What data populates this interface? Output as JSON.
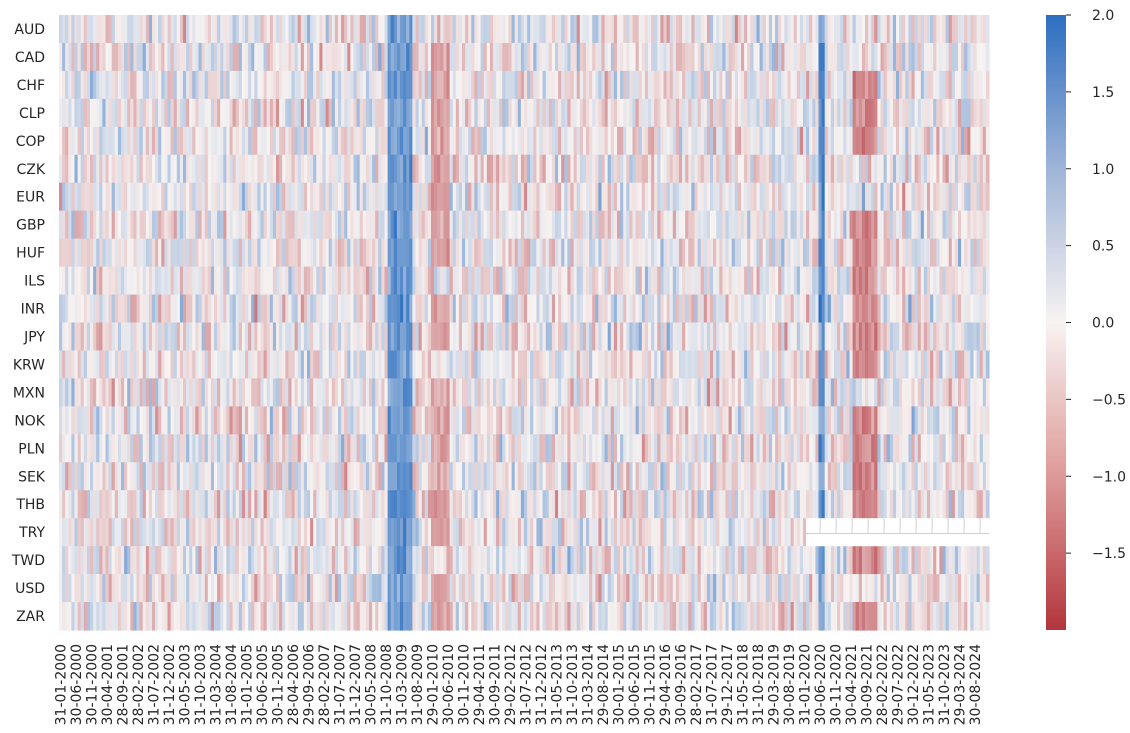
{
  "chart_data": {
    "type": "heatmap",
    "title": "",
    "xlabel": "",
    "ylabel": "",
    "rows": [
      "AUD",
      "CAD",
      "CHF",
      "CLP",
      "COP",
      "CZK",
      "EUR",
      "GBP",
      "HUF",
      "ILS",
      "INR",
      "JPY",
      "KRW",
      "MXN",
      "NOK",
      "PLN",
      "SEK",
      "THB",
      "TRY",
      "TWD",
      "USD",
      "ZAR"
    ],
    "x_tick_labels": [
      "31-01-2000",
      "30-06-2000",
      "30-11-2000",
      "30-04-2001",
      "28-09-2001",
      "28-02-2002",
      "31-07-2002",
      "31-12-2002",
      "30-05-2003",
      "31-10-2003",
      "31-03-2004",
      "31-08-2004",
      "31-01-2005",
      "30-06-2005",
      "30-11-2005",
      "28-04-2006",
      "29-09-2006",
      "28-02-2007",
      "31-07-2007",
      "31-12-2007",
      "30-05-2008",
      "31-10-2008",
      "31-03-2009",
      "31-08-2009",
      "29-01-2010",
      "30-06-2010",
      "30-11-2010",
      "29-04-2011",
      "30-09-2011",
      "29-02-2012",
      "31-07-2012",
      "31-12-2012",
      "31-05-2013",
      "31-10-2013",
      "31-03-2014",
      "29-08-2014",
      "30-01-2015",
      "30-06-2015",
      "30-11-2015",
      "29-04-2016",
      "30-09-2016",
      "28-02-2017",
      "31-07-2017",
      "29-12-2017",
      "31-05-2018",
      "31-10-2018",
      "29-03-2019",
      "30-08-2019",
      "31-01-2020",
      "30-06-2020",
      "30-11-2020",
      "30-04-2021",
      "30-09-2021",
      "28-02-2022",
      "29-07-2022",
      "30-12-2022",
      "31-05-2023",
      "31-10-2023",
      "29-03-2024",
      "30-08-2024"
    ],
    "n_months": 300,
    "colorbar": {
      "vmin": -2.0,
      "vmax": 2.0,
      "ticks": [
        2.0,
        1.5,
        1.0,
        0.5,
        0.0,
        -0.5,
        -1.0,
        -1.5
      ],
      "tick_labels": [
        "2.0",
        "1.5",
        "1.0",
        "0.5",
        "0.0",
        "−0.5",
        "−1.0",
        "−1.5"
      ],
      "colormap": "diverging red-white-blue",
      "low_color": "#b3353d",
      "mid_color": "#f7f3f2",
      "high_color": "#2c6fc0"
    },
    "missing": {
      "row": "TRY",
      "from_index": 241
    },
    "description_of_values": "Monthly standardized z-scores per currency, range about -2 to 2",
    "events": [
      {
        "label": "31-10-2008",
        "index": 106,
        "width": 8,
        "value": 1.6,
        "rows": "all"
      },
      {
        "label": "30-06-2020",
        "index": 245,
        "width": 2,
        "value": 1.8,
        "rows": "all"
      },
      {
        "label": "30-04-2021",
        "index": 256,
        "width": 8,
        "value": -1.3,
        "rows": "most"
      },
      {
        "label": "29-01-2010",
        "index": 120,
        "width": 6,
        "value": -1.0,
        "rows": "most"
      }
    ]
  }
}
